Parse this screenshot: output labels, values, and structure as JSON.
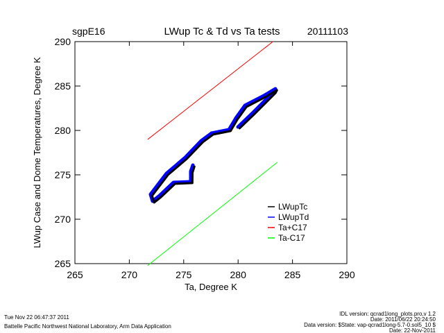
{
  "chart_data": {
    "type": "line",
    "title": "LWup Tc & Td vs Ta tests",
    "left_label": "sgpE16",
    "right_label": "20111103",
    "xlabel": "Ta, Degree K",
    "ylabel": "LWup Case and Dome Temperatures, Degree K",
    "xlim": [
      265,
      290
    ],
    "ylim": [
      265,
      290
    ],
    "xticks": [
      "265",
      "270",
      "275",
      "280",
      "285",
      "290"
    ],
    "yticks": [
      "265",
      "270",
      "275",
      "280",
      "285",
      "290"
    ],
    "legend_position": "bottom-right",
    "series": [
      {
        "name": "LWupTc",
        "color": "#000000",
        "points": [
          [
            275.99,
            275.94
          ],
          [
            275.81,
            275.24
          ],
          [
            275.8,
            274.07
          ],
          [
            274.21,
            273.99
          ],
          [
            272.93,
            272.51
          ],
          [
            272.29,
            271.88
          ],
          [
            272.1,
            272.65
          ],
          [
            273.57,
            275.01
          ],
          [
            275.29,
            276.8
          ],
          [
            276.76,
            278.68
          ],
          [
            277.71,
            279.54
          ],
          [
            279.31,
            279.93
          ],
          [
            279.95,
            281.25
          ],
          [
            280.78,
            282.66
          ],
          [
            282.5,
            283.75
          ],
          [
            283.58,
            284.54
          ],
          [
            283.45,
            284.23
          ],
          [
            281.54,
            281.88
          ],
          [
            280.14,
            280.24
          ]
        ]
      },
      {
        "name": "LWupTd",
        "color": "#0000ff",
        "points": [
          [
            275.84,
            276.09
          ],
          [
            275.65,
            275.39
          ],
          [
            275.65,
            274.22
          ],
          [
            274.06,
            274.14
          ],
          [
            272.78,
            272.66
          ],
          [
            272.14,
            272.03
          ],
          [
            271.95,
            272.8
          ],
          [
            273.42,
            275.16
          ],
          [
            275.14,
            276.95
          ],
          [
            276.61,
            278.83
          ],
          [
            277.56,
            279.69
          ],
          [
            279.16,
            280.08
          ],
          [
            279.8,
            281.4
          ],
          [
            280.63,
            282.81
          ],
          [
            282.35,
            283.9
          ],
          [
            283.43,
            284.69
          ],
          [
            283.3,
            284.38
          ],
          [
            281.39,
            282.03
          ],
          [
            279.99,
            280.39
          ]
        ]
      },
      {
        "name": "Ta+C17",
        "color": "#ff0000",
        "points": [
          [
            271.7,
            279.0
          ],
          [
            283.2,
            290.0
          ]
        ]
      },
      {
        "name": "Ta-C17",
        "color": "#00ff00",
        "points": [
          [
            271.7,
            264.8
          ],
          [
            283.6,
            276.4
          ]
        ]
      }
    ]
  },
  "footer": {
    "timestamp": "Tue Nov 22 06:47:37 2011",
    "institution": "Battelle Pacific Northwest National Laboratory, Arm Data Application",
    "idl_version": "IDL version: qcrad1long_plots.pro,v 1.2",
    "idl_date": "Date: 2011/06/22 20:24:50",
    "data_version": "Data version: $State: vap-qcrad1long-5.7-0.sol5_10 $",
    "data_date": "Date: 22-Nov-2011"
  }
}
